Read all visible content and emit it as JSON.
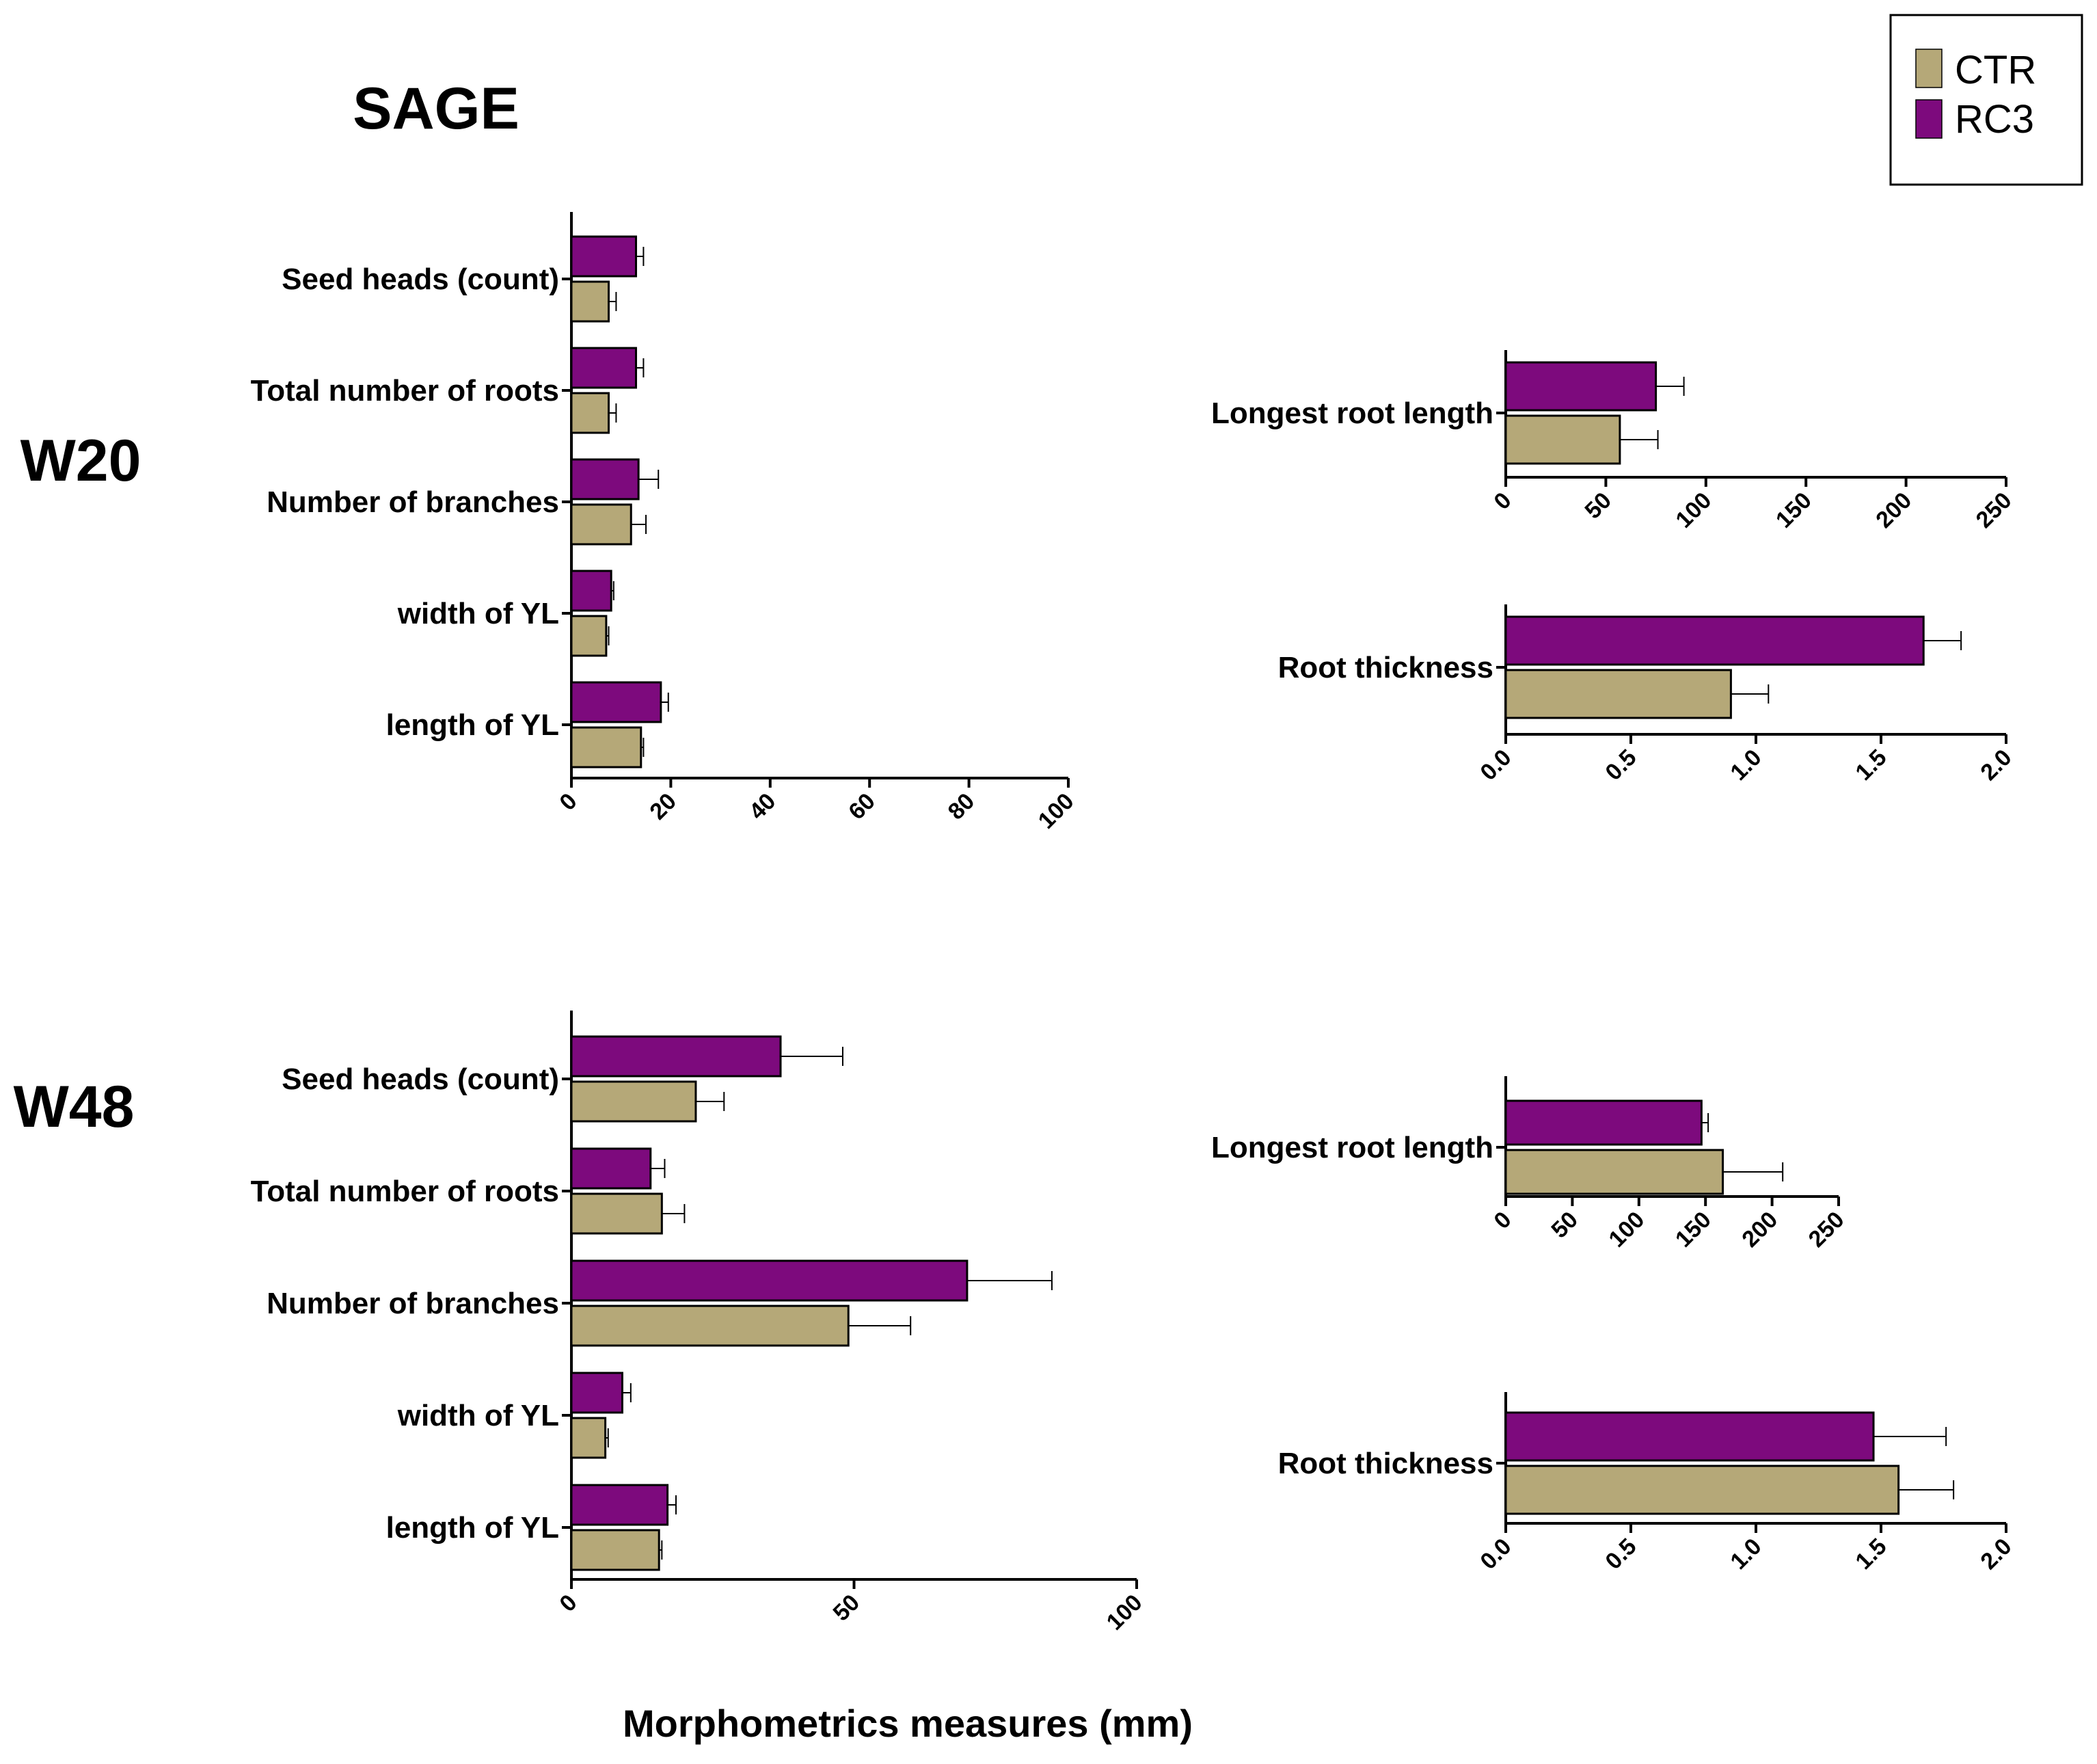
{
  "figure": {
    "title": "SAGE",
    "xlabel": "Morphometrics measures (mm)",
    "legend": [
      {
        "label": "CTR",
        "color": "#b5a878"
      },
      {
        "label": "RC3",
        "color": "#7d0a7d"
      }
    ],
    "colors": {
      "CTR": "#b5a878",
      "RC3": "#7d0a7d",
      "axis": "#000000"
    }
  },
  "chart_data": [
    {
      "id": "w20-main",
      "type": "bar",
      "orientation": "horizontal",
      "row_label": "W20",
      "categories": [
        "Seed heads (count)",
        "Total number of roots",
        "Number of branches",
        "width of YL",
        "length of YL"
      ],
      "series": [
        {
          "name": "RC3",
          "values": [
            13,
            13,
            13.5,
            8,
            18
          ],
          "errors": [
            1.5,
            1.5,
            4,
            0.5,
            1.5
          ]
        },
        {
          "name": "CTR",
          "values": [
            7.5,
            7.5,
            12,
            7,
            14
          ],
          "errors": [
            1.5,
            1.5,
            3,
            0.5,
            0.5
          ]
        }
      ],
      "xlim": [
        0,
        100
      ],
      "ticks": [
        "0",
        "20",
        "40",
        "60",
        "80",
        "100"
      ],
      "tick_values": [
        0,
        20,
        40,
        60,
        80,
        100
      ]
    },
    {
      "id": "w20-longest",
      "type": "bar",
      "orientation": "horizontal",
      "row_label": "W20",
      "categories": [
        "Longest root length"
      ],
      "series": [
        {
          "name": "RC3",
          "values": [
            75
          ],
          "errors": [
            14
          ]
        },
        {
          "name": "CTR",
          "values": [
            57
          ],
          "errors": [
            19
          ]
        }
      ],
      "xlim": [
        0,
        250
      ],
      "ticks": [
        "0",
        "50",
        "100",
        "150",
        "200",
        "250"
      ],
      "tick_values": [
        0,
        50,
        100,
        150,
        200,
        250
      ]
    },
    {
      "id": "w20-thickness",
      "type": "bar",
      "orientation": "horizontal",
      "row_label": "W20",
      "categories": [
        "Root thickness"
      ],
      "series": [
        {
          "name": "RC3",
          "values": [
            1.67
          ],
          "errors": [
            0.15
          ]
        },
        {
          "name": "CTR",
          "values": [
            0.9
          ],
          "errors": [
            0.15
          ]
        }
      ],
      "xlim": [
        0,
        2.0
      ],
      "ticks": [
        "0.0",
        "0.5",
        "1.0",
        "1.5",
        "2.0"
      ],
      "tick_values": [
        0,
        0.5,
        1.0,
        1.5,
        2.0
      ]
    },
    {
      "id": "w48-main",
      "type": "bar",
      "orientation": "horizontal",
      "row_label": "W48",
      "categories": [
        "Seed heads (count)",
        "Total number of roots",
        "Number of branches",
        "width of YL",
        "length of YL"
      ],
      "series": [
        {
          "name": "RC3",
          "values": [
            37,
            14,
            70,
            9,
            17
          ],
          "errors": [
            11,
            2.5,
            15,
            1.5,
            1.5
          ]
        },
        {
          "name": "CTR",
          "values": [
            22,
            16,
            49,
            6,
            15.5
          ],
          "errors": [
            5,
            4,
            11,
            0.5,
            0.5
          ]
        }
      ],
      "xlim": [
        0,
        100
      ],
      "ticks": [
        "0",
        "50",
        "100"
      ],
      "tick_values": [
        0,
        50,
        100
      ]
    },
    {
      "id": "w48-longest",
      "type": "bar",
      "orientation": "horizontal",
      "row_label": "W48",
      "categories": [
        "Longest root length"
      ],
      "series": [
        {
          "name": "RC3",
          "values": [
            147
          ],
          "errors": [
            5
          ]
        },
        {
          "name": "CTR",
          "values": [
            163
          ],
          "errors": [
            45
          ]
        }
      ],
      "xlim": [
        0,
        250
      ],
      "ticks": [
        "0",
        "50",
        "100",
        "150",
        "200",
        "250"
      ],
      "tick_values": [
        0,
        50,
        100,
        150,
        200,
        250
      ]
    },
    {
      "id": "w48-thickness",
      "type": "bar",
      "orientation": "horizontal",
      "row_label": "W48",
      "categories": [
        "Root thickness"
      ],
      "series": [
        {
          "name": "RC3",
          "values": [
            1.47
          ],
          "errors": [
            0.29
          ]
        },
        {
          "name": "CTR",
          "values": [
            1.57
          ],
          "errors": [
            0.22
          ]
        }
      ],
      "xlim": [
        0,
        2.0
      ],
      "ticks": [
        "0.0",
        "0.5",
        "1.0",
        "1.5",
        "2.0"
      ],
      "tick_values": [
        0,
        0.5,
        1.0,
        1.5,
        2.0
      ]
    }
  ]
}
